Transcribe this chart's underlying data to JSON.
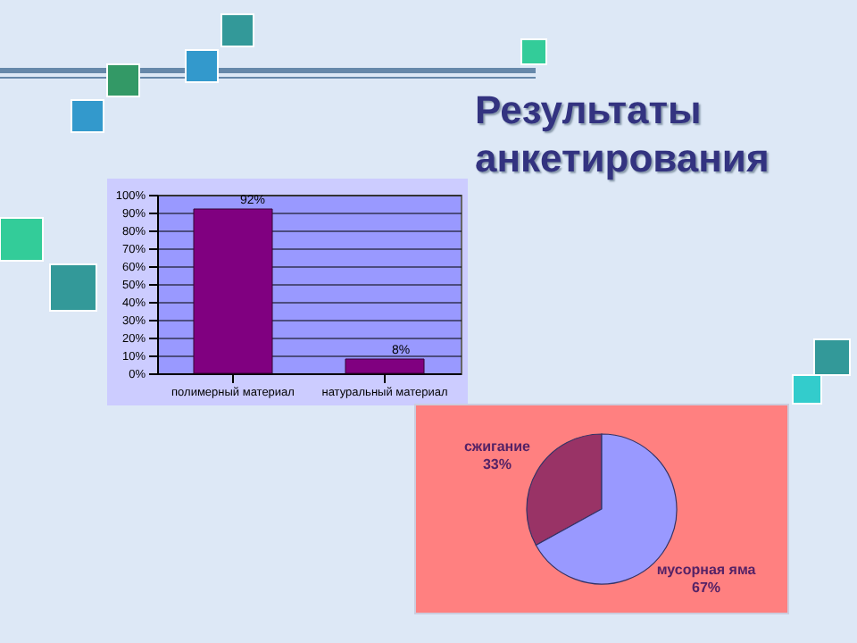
{
  "chart_data": [
    {
      "type": "bar",
      "title": "Результаты анкетирования",
      "categories": [
        "полимерный материал",
        "натуральный материал"
      ],
      "values": [
        92,
        8
      ],
      "color": "#800080",
      "value_labels": [
        "92%",
        "8%"
      ],
      "ylim": [
        0,
        100
      ],
      "yticks": [
        {
          "value": 0,
          "label": "0%"
        },
        {
          "value": 10,
          "label": "10%"
        },
        {
          "value": 20,
          "label": "20%"
        },
        {
          "value": 30,
          "label": "30%"
        },
        {
          "value": 40,
          "label": "40%"
        },
        {
          "value": 50,
          "label": "50%"
        },
        {
          "value": 60,
          "label": "60%"
        },
        {
          "value": 70,
          "label": "70%"
        },
        {
          "value": 80,
          "label": "80%"
        },
        {
          "value": 90,
          "label": "90%"
        },
        {
          "value": 100,
          "label": "100%"
        }
      ],
      "grid": "y"
    },
    {
      "type": "pie",
      "categories": [
        "сжигание",
        "мусорная яма"
      ],
      "values": [
        33,
        67
      ],
      "colors": [
        "#993366",
        "#9999ff"
      ],
      "value_labels": [
        "33%",
        "67%"
      ]
    }
  ]
}
